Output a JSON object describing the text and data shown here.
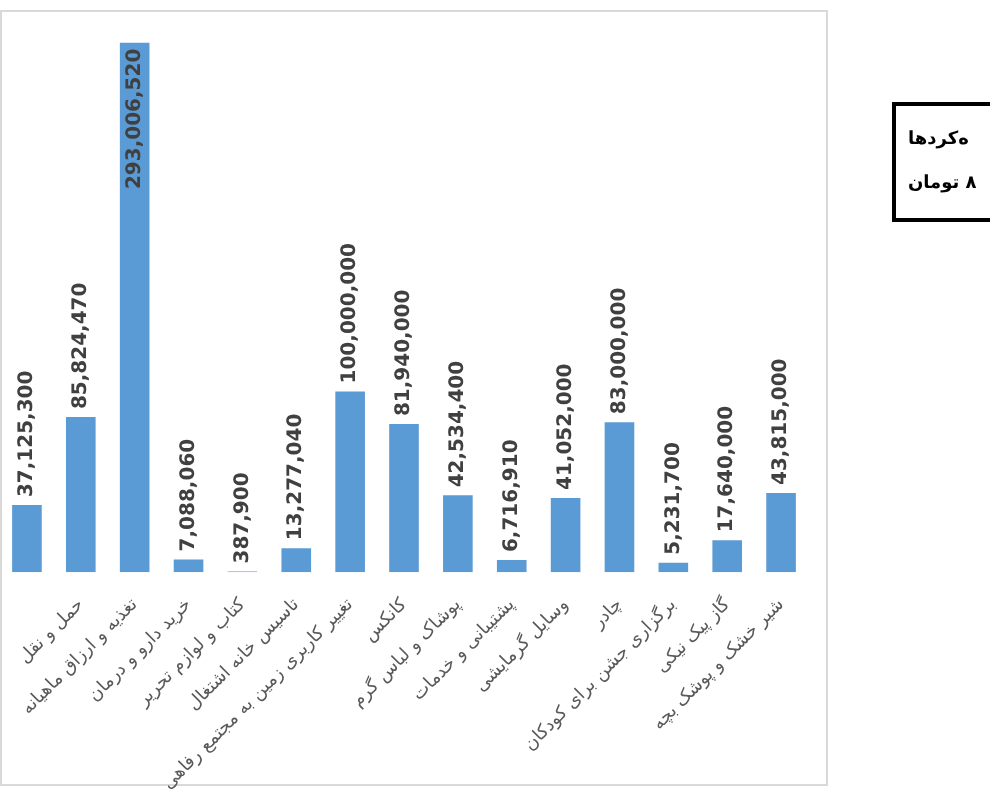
{
  "chart_data": {
    "type": "bar",
    "categories": [
      null,
      "حمل و نقل",
      "تغذیه و ارزاق ماهیانه",
      "خرید دارو و درمان",
      "کتاب و لوازم تحریر",
      "تاسیس خانه اشتغال",
      "تغییر کاربری زمین به مجتمع رفاهی",
      "کانکس",
      "پوشاک و لباس گرم",
      "پشتیبانی و خدمات",
      "وسایل گرمایشی",
      "چادر",
      "برگزاری جشن برای کودکان",
      "گاز پیک نیکی",
      "شیر خشک و پوشک بچه"
    ],
    "values": [
      37125300,
      85824470,
      293006520,
      7088060,
      387900,
      13277040,
      100000000,
      81940000,
      42534400,
      6716910,
      41052000,
      83000000,
      5231700,
      17640000,
      43815000
    ],
    "color": "#5b9bd5",
    "value_labels": [
      "37,125,300",
      "85,824,470",
      "293,006,520",
      "7,088,060",
      "387,900",
      "13,277,040",
      "100,000,000",
      "81,940,000",
      "42,534,400",
      "6,716,910",
      "41,052,000",
      "83,000,000",
      "5,231,700",
      "17,640,000",
      "43,815,000"
    ],
    "tick_labels": "x",
    "annotations": [
      "ه‌کردها",
      "۸ تومان"
    ]
  }
}
